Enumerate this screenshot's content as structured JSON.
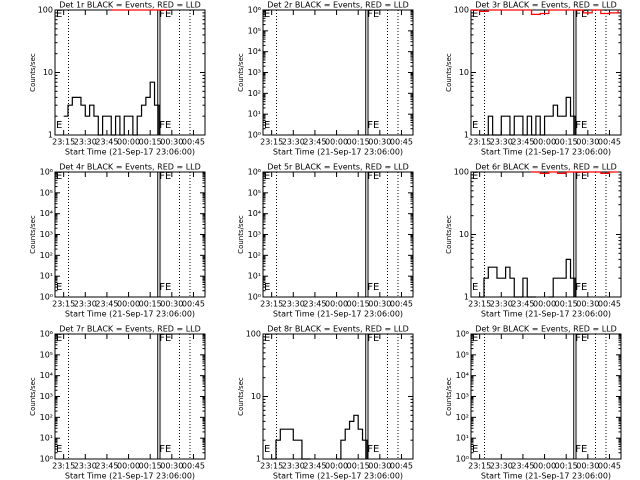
{
  "chart_data": [
    {
      "type": "line",
      "title": "Det 1r BLACK = Events, RED = LLD",
      "ylabel": "Counts/sec",
      "xlabel": "Start Time (21-Sep-17 23:06:00)",
      "yscale": "log",
      "xlim": [
        "23:09",
        "00:53"
      ],
      "xticks": [
        "23:15",
        "23:30",
        "23:45",
        "00:00",
        "00:15",
        "00:30",
        "00:45"
      ],
      "ylim": [
        1,
        100
      ],
      "yticks": [
        1,
        10,
        100
      ],
      "annotations": [
        "E",
        "FE"
      ],
      "series": [
        {
          "color": "#000000",
          "x": [
            "23:15",
            "23:18",
            "23:21",
            "23:24",
            "23:27",
            "23:30",
            "23:33",
            "23:36",
            "23:39",
            "23:42",
            "23:45",
            "23:48",
            "23:51",
            "23:54",
            "23:57",
            "00:00",
            "00:03",
            "00:06",
            "00:09",
            "00:12",
            "00:15",
            "00:18",
            "00:21"
          ],
          "values": [
            2,
            3,
            4,
            4,
            3,
            2,
            3,
            2,
            1,
            2,
            2,
            1,
            2,
            1,
            2,
            2,
            1,
            2,
            3,
            4,
            7,
            3,
            1
          ]
        },
        {
          "color": "#ff0000",
          "x": [
            "23:48",
            "23:54",
            "00:00",
            "00:06",
            "00:12",
            "00:18",
            "00:24",
            "00:28"
          ],
          "values": [
            100,
            100,
            100,
            100,
            100,
            100,
            100,
            100
          ]
        }
      ]
    },
    {
      "type": "line",
      "title": "Det 2r BLACK = Events, RED = LLD",
      "ylabel": "Counts/sec",
      "xlabel": "Start Time (21-Sep-17 23:06:00)",
      "yscale": "log",
      "xlim": [
        "23:09",
        "00:53"
      ],
      "xticks": [
        "23:15",
        "23:30",
        "23:45",
        "00:00",
        "00:15",
        "00:30",
        "00:45"
      ],
      "ylim": [
        1,
        1000000
      ],
      "yticks": [
        {
          "value": 1,
          "label": "10⁰"
        },
        {
          "value": 10,
          "label": "10¹"
        },
        {
          "value": 100,
          "label": "10²"
        },
        {
          "value": 1000,
          "label": "10³"
        },
        {
          "value": 10000,
          "label": "10⁴"
        },
        {
          "value": 100000,
          "label": "10⁵"
        },
        {
          "value": 1000000,
          "label": "10⁶"
        }
      ],
      "annotations": [
        "E",
        "FE"
      ],
      "series": []
    },
    {
      "type": "line",
      "title": "Det 3r BLACK = Events, RED = LLD",
      "ylabel": "Counts/sec",
      "xlabel": "Start Time (21-Sep-17 23:06:00)",
      "yscale": "log",
      "xlim": [
        "23:09",
        "00:53"
      ],
      "xticks": [
        "23:15",
        "23:30",
        "23:45",
        "00:00",
        "00:15",
        "00:30",
        "00:45"
      ],
      "ylim": [
        1,
        100
      ],
      "yticks": [
        1,
        10,
        100
      ],
      "annotations": [
        "E",
        "FE"
      ],
      "series": [
        {
          "color": "#000000",
          "x": [
            "23:15",
            "23:18",
            "23:21",
            "23:24",
            "23:27",
            "23:30",
            "23:33",
            "23:36",
            "23:39",
            "23:42",
            "23:45",
            "23:48",
            "23:51",
            "23:54",
            "23:57",
            "00:00",
            "00:03",
            "00:06",
            "00:09",
            "00:12",
            "00:15",
            "00:18",
            "00:21"
          ],
          "values": [
            1,
            1,
            2,
            1,
            1,
            2,
            2,
            1,
            2,
            2,
            1,
            2,
            1,
            2,
            1,
            2,
            2,
            3,
            2,
            2,
            4,
            2,
            1
          ]
        },
        {
          "color": "#ff0000",
          "x": [
            "23:09",
            "23:15",
            "23:21",
            "23:27",
            "23:33",
            "23:39",
            "23:45",
            "23:51",
            "23:57",
            "00:03",
            "00:09",
            "00:15",
            "00:21",
            "00:27",
            "00:33",
            "00:39",
            "00:45",
            "00:51"
          ],
          "values": [
            100,
            95,
            100,
            100,
            100,
            100,
            100,
            85,
            88,
            100,
            100,
            100,
            100,
            90,
            100,
            88,
            90,
            100
          ]
        }
      ]
    },
    {
      "type": "line",
      "title": "Det 4r BLACK = Events, RED = LLD",
      "ylabel": "Counts/sec",
      "xlabel": "Start Time (21-Sep-17 23:06:00)",
      "yscale": "log",
      "xlim": [
        "23:09",
        "00:53"
      ],
      "xticks": [
        "23:15",
        "23:30",
        "23:45",
        "00:00",
        "00:15",
        "00:30",
        "00:45"
      ],
      "ylim": [
        1,
        1000000
      ],
      "yticks": [
        {
          "value": 1,
          "label": "10⁰"
        },
        {
          "value": 10,
          "label": "10¹"
        },
        {
          "value": 100,
          "label": "10²"
        },
        {
          "value": 1000,
          "label": "10³"
        },
        {
          "value": 10000,
          "label": "10⁴"
        },
        {
          "value": 100000,
          "label": "10⁵"
        },
        {
          "value": 1000000,
          "label": "10⁶"
        }
      ],
      "annotations": [
        "E",
        "FE"
      ],
      "series": []
    },
    {
      "type": "line",
      "title": "Det 5r BLACK = Events, RED = LLD",
      "ylabel": "Counts/sec",
      "xlabel": "Start Time (21-Sep-17 23:06:00)",
      "yscale": "log",
      "xlim": [
        "23:09",
        "00:53"
      ],
      "xticks": [
        "23:15",
        "23:30",
        "23:45",
        "00:00",
        "00:15",
        "00:30",
        "00:45"
      ],
      "ylim": [
        1,
        1000000
      ],
      "yticks": [
        {
          "value": 1,
          "label": "10⁰"
        },
        {
          "value": 10,
          "label": "10¹"
        },
        {
          "value": 100,
          "label": "10²"
        },
        {
          "value": 1000,
          "label": "10³"
        },
        {
          "value": 10000,
          "label": "10⁴"
        },
        {
          "value": 100000,
          "label": "10⁵"
        },
        {
          "value": 1000000,
          "label": "10⁶"
        }
      ],
      "annotations": [
        "E",
        "FE"
      ],
      "series": []
    },
    {
      "type": "line",
      "title": "Det 6r BLACK = Events, RED = LLD",
      "ylabel": "Counts/sec",
      "xlabel": "Start Time (21-Sep-17 23:06:00)",
      "yscale": "log",
      "xlim": [
        "23:09",
        "00:53"
      ],
      "xticks": [
        "23:15",
        "23:30",
        "23:45",
        "00:00",
        "00:15",
        "00:30",
        "00:45"
      ],
      "ylim": [
        1,
        100
      ],
      "yticks": [
        1,
        10,
        100
      ],
      "annotations": [
        "E",
        "FE"
      ],
      "series": [
        {
          "color": "#000000",
          "x": [
            "23:15",
            "23:18",
            "23:21",
            "23:24",
            "23:27",
            "23:30",
            "23:33",
            "23:36",
            "23:39",
            "23:42",
            "23:45",
            "23:48",
            "23:51",
            "23:54",
            "23:57",
            "00:00",
            "00:03",
            "00:06",
            "00:09",
            "00:12",
            "00:15",
            "00:18",
            "00:21"
          ],
          "values": [
            1,
            2,
            3,
            3,
            2,
            2,
            3,
            2,
            1,
            1,
            2,
            1,
            1,
            1,
            null,
            null,
            1,
            2,
            2,
            2,
            4,
            2,
            1
          ]
        },
        {
          "color": "#ff0000",
          "x": [
            "23:51",
            "23:57",
            "00:03",
            "00:09",
            "00:15",
            "00:21",
            "00:27",
            "00:33",
            "00:39",
            "00:45",
            "00:51"
          ],
          "values": [
            100,
            95,
            100,
            95,
            100,
            100,
            100,
            100,
            95,
            100,
            100
          ]
        }
      ]
    },
    {
      "type": "line",
      "title": "Det 7r BLACK = Events, RED = LLD",
      "ylabel": "Counts/sec",
      "xlabel": "Start Time (21-Sep-17 23:06:00)",
      "yscale": "log",
      "xlim": [
        "23:09",
        "00:53"
      ],
      "xticks": [
        "23:15",
        "23:30",
        "23:45",
        "00:00",
        "00:15",
        "00:30",
        "00:45"
      ],
      "ylim": [
        1,
        1000000
      ],
      "yticks": [
        {
          "value": 1,
          "label": "10⁰"
        },
        {
          "value": 10,
          "label": "10¹"
        },
        {
          "value": 100,
          "label": "10²"
        },
        {
          "value": 1000,
          "label": "10³"
        },
        {
          "value": 10000,
          "label": "10⁴"
        },
        {
          "value": 100000,
          "label": "10⁵"
        },
        {
          "value": 1000000,
          "label": "10⁶"
        }
      ],
      "annotations": [
        "E",
        "FE"
      ],
      "series": []
    },
    {
      "type": "line",
      "title": "Det 8r BLACK = Events, RED = LLD",
      "ylabel": "Counts/sec",
      "xlabel": "Start Time (21-Sep-17 23:06:00)",
      "yscale": "log",
      "xlim": [
        "23:09",
        "00:53"
      ],
      "xticks": [
        "23:15",
        "23:30",
        "23:45",
        "00:00",
        "00:15",
        "00:30",
        "00:45"
      ],
      "ylim": [
        1,
        100
      ],
      "yticks": [
        1,
        10,
        100
      ],
      "annotations": [
        "E",
        "FE"
      ],
      "series": [
        {
          "color": "#000000",
          "x": [
            "23:15",
            "23:18",
            "23:21",
            "23:24",
            "23:27",
            "23:30",
            "23:33",
            "23:36",
            "23:39",
            "23:42",
            "23:45",
            "23:48",
            "23:51",
            "23:54",
            "23:57",
            "00:00",
            "00:03",
            "00:06",
            "00:09",
            "00:12",
            "00:15",
            "00:18",
            "00:21"
          ],
          "values": [
            1,
            2,
            3,
            3,
            3,
            2,
            2,
            1,
            1,
            1,
            null,
            null,
            null,
            null,
            null,
            1,
            2,
            3,
            4,
            5,
            3,
            2,
            1
          ]
        }
      ]
    },
    {
      "type": "line",
      "title": "Det 9r BLACK = Events, RED = LLD",
      "ylabel": "Counts/sec",
      "xlabel": "Start Time (21-Sep-17 23:06:00)",
      "yscale": "log",
      "xlim": [
        "23:09",
        "00:53"
      ],
      "xticks": [
        "23:15",
        "23:30",
        "23:45",
        "00:00",
        "00:15",
        "00:30",
        "00:45"
      ],
      "ylim": [
        1,
        1000000
      ],
      "yticks": [
        {
          "value": 1,
          "label": "10⁰"
        },
        {
          "value": 10,
          "label": "10¹"
        },
        {
          "value": 100,
          "label": "10²"
        },
        {
          "value": 1000,
          "label": "10³"
        },
        {
          "value": 10000,
          "label": "10⁴"
        },
        {
          "value": 100000,
          "label": "10⁵"
        },
        {
          "value": 1000000,
          "label": "10⁶"
        }
      ],
      "annotations": [
        "E",
        "FE"
      ],
      "series": []
    }
  ]
}
